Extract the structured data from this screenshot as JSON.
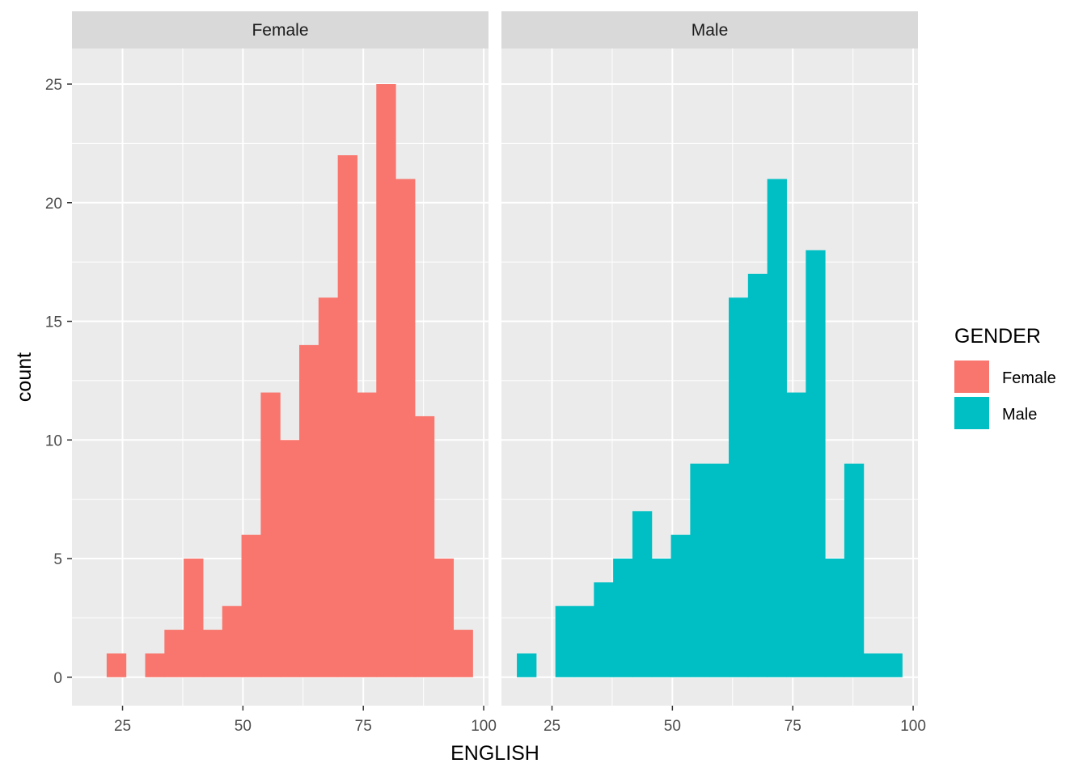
{
  "chart_data": {
    "type": "bar",
    "xlabel": "ENGLISH",
    "ylabel": "count",
    "xlim": [
      14.5,
      101
    ],
    "ylim": [
      -1.2,
      26.5
    ],
    "x_ticks": [
      25,
      50,
      75,
      100
    ],
    "y_ticks": [
      0,
      5,
      10,
      15,
      20,
      25
    ],
    "grid": true,
    "bin_width": 4,
    "legend": {
      "title": "GENDER",
      "position": "right",
      "entries": [
        {
          "label": "Female",
          "color": "#F8766D"
        },
        {
          "label": "Male",
          "color": "#00BFC4"
        }
      ]
    },
    "panels": [
      {
        "name": "Female",
        "color": "#F8766D",
        "bins": [
          {
            "start": 21.7,
            "count": 1
          },
          {
            "start": 29.7,
            "count": 1
          },
          {
            "start": 33.7,
            "count": 2
          },
          {
            "start": 37.7,
            "count": 5
          },
          {
            "start": 41.7,
            "count": 2
          },
          {
            "start": 45.7,
            "count": 3
          },
          {
            "start": 49.7,
            "count": 6
          },
          {
            "start": 53.7,
            "count": 12
          },
          {
            "start": 57.7,
            "count": 10
          },
          {
            "start": 61.7,
            "count": 14
          },
          {
            "start": 65.7,
            "count": 16
          },
          {
            "start": 69.7,
            "count": 22
          },
          {
            "start": 73.7,
            "count": 12
          },
          {
            "start": 77.7,
            "count": 25
          },
          {
            "start": 81.7,
            "count": 21
          },
          {
            "start": 85.7,
            "count": 11
          },
          {
            "start": 89.7,
            "count": 5
          },
          {
            "start": 93.7,
            "count": 2
          }
        ]
      },
      {
        "name": "Male",
        "color": "#00BFC4",
        "bins": [
          {
            "start": 17.7,
            "count": 1
          },
          {
            "start": 25.7,
            "count": 3
          },
          {
            "start": 29.7,
            "count": 3
          },
          {
            "start": 33.7,
            "count": 4
          },
          {
            "start": 37.7,
            "count": 5
          },
          {
            "start": 41.7,
            "count": 7
          },
          {
            "start": 45.7,
            "count": 5
          },
          {
            "start": 49.7,
            "count": 6
          },
          {
            "start": 53.7,
            "count": 9
          },
          {
            "start": 57.7,
            "count": 9
          },
          {
            "start": 61.7,
            "count": 16
          },
          {
            "start": 65.7,
            "count": 17
          },
          {
            "start": 69.7,
            "count": 21
          },
          {
            "start": 73.7,
            "count": 12
          },
          {
            "start": 77.7,
            "count": 18
          },
          {
            "start": 81.7,
            "count": 5
          },
          {
            "start": 85.7,
            "count": 9
          },
          {
            "start": 89.7,
            "count": 1
          },
          {
            "start": 93.7,
            "count": 1
          }
        ]
      }
    ]
  }
}
